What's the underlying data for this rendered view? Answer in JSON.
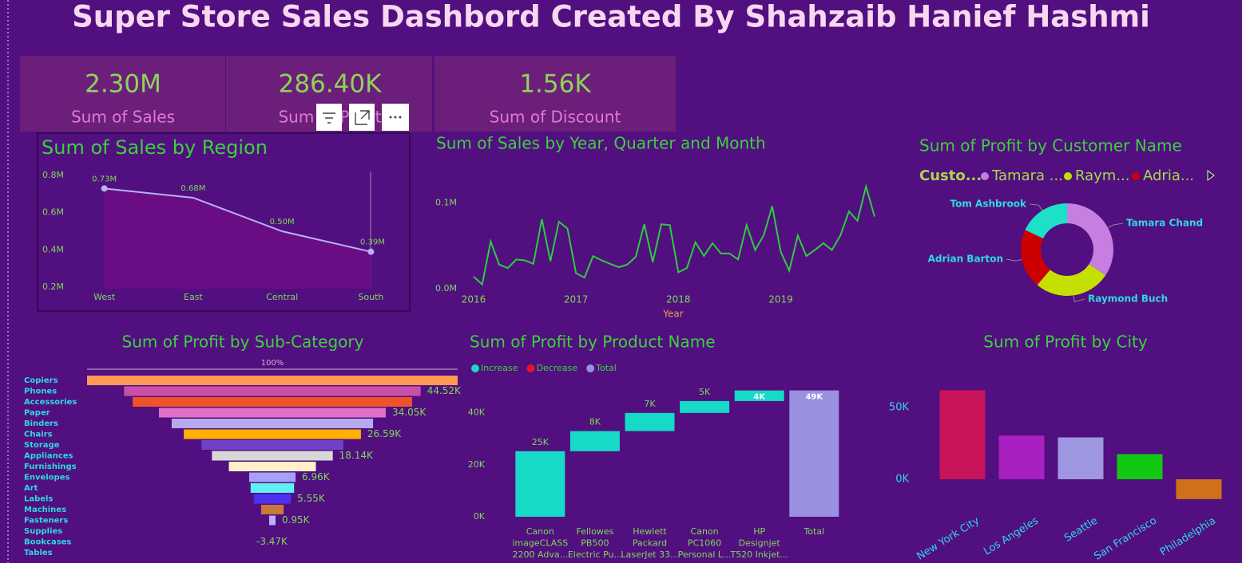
{
  "title": "Super Store Sales Dashbord Created By Shahzaib Hanief Hashmi",
  "cards": [
    {
      "value": "2.30M",
      "label": "Sum of Sales"
    },
    {
      "value": "286.40K",
      "label": "Sum of Profit"
    },
    {
      "value": "1.56K",
      "label": "Sum of Discount"
    }
  ],
  "chart_data": [
    {
      "type": "area",
      "title": "Sum of Sales by Region",
      "categories": [
        "West",
        "East",
        "Central",
        "South"
      ],
      "values": [
        0.73,
        0.68,
        0.5,
        0.39
      ],
      "value_labels": [
        "0.73M",
        "0.68M",
        "0.50M",
        "0.39M"
      ],
      "color": "#b8b0f0",
      "ylim": [
        0.2,
        0.8
      ],
      "yticks": [
        {
          "value": 0.2,
          "label": "0.2M"
        },
        {
          "value": 0.4,
          "label": "0.4M"
        },
        {
          "value": 0.6,
          "label": "0.6M"
        },
        {
          "value": 0.8,
          "label": "0.8M"
        }
      ]
    },
    {
      "type": "line",
      "title": "Sum of Sales by Year, Quarter and Month",
      "xlabel": "Year",
      "categories": [
        "2016",
        null,
        null,
        null,
        null,
        null,
        null,
        null,
        null,
        null,
        null,
        null,
        "2017",
        null,
        null,
        null,
        null,
        null,
        null,
        null,
        null,
        null,
        null,
        null,
        "2018",
        null,
        null,
        null,
        null,
        null,
        null,
        null,
        null,
        null,
        null,
        null,
        "2019",
        null,
        null,
        null,
        null,
        null,
        null,
        null,
        null,
        null,
        null,
        null
      ],
      "values": [
        0.014,
        0.005,
        0.055,
        0.028,
        0.024,
        0.034,
        0.033,
        0.029,
        0.081,
        0.032,
        0.078,
        0.07,
        0.018,
        0.013,
        0.038,
        0.033,
        0.029,
        0.025,
        0.028,
        0.037,
        0.075,
        0.031,
        0.075,
        0.074,
        0.019,
        0.024,
        0.054,
        0.038,
        0.053,
        0.041,
        0.041,
        0.034,
        0.074,
        0.045,
        0.062,
        0.096,
        0.043,
        0.021,
        0.062,
        0.038,
        0.045,
        0.053,
        0.045,
        0.062,
        0.09,
        0.079,
        0.119,
        0.084
      ],
      "color": "#2ecc40",
      "ylim": [
        0,
        0.13
      ],
      "yticks": [
        {
          "value": 0,
          "label": "0.0M"
        },
        {
          "value": 0.1,
          "label": "0.1M"
        }
      ]
    },
    {
      "type": "donut",
      "title": "Sum of Profit by Customer Name",
      "legend_title": "Custo...",
      "legend_labels": [
        "Tamara ...",
        "Raym...",
        "Adria..."
      ],
      "categories": [
        "Tamara Chand",
        "Raymond Buch",
        "Adrian Barton",
        "Tom Ashbrook"
      ],
      "values": [
        8981.32,
        6976.1,
        5444.81,
        4703.79
      ],
      "colors": [
        "#c67ee0",
        "#c5e000",
        "#cc0000",
        "#1de0c8"
      ]
    },
    {
      "type": "funnel",
      "title": "Sum of Profit by Sub-Category",
      "top_label": "100%",
      "categories": [
        "Copiers",
        "Phones",
        "Accessories",
        "Paper",
        "Binders",
        "Chairs",
        "Storage",
        "Appliances",
        "Furnishings",
        "Envelopes",
        "Art",
        "Labels",
        "Machines",
        "Fasteners",
        "Supplies",
        "Bookcases",
        "Tables"
      ],
      "values": [
        55.62,
        44.52,
        41.94,
        34.05,
        30.22,
        26.59,
        21.28,
        18.14,
        13.06,
        6.96,
        6.53,
        5.55,
        3.38,
        0.95,
        -1.19,
        -3.47,
        -17.73
      ],
      "value_labels": [
        null,
        "44.52K",
        null,
        "34.05K",
        null,
        "26.59K",
        null,
        "18.14K",
        null,
        "6.96K",
        null,
        "5.55K",
        null,
        "0.95K",
        null,
        "-3.47K",
        null
      ],
      "colors": [
        "#ff9955",
        "#c94fa8",
        "#f0522a",
        "#e070c8",
        "#b8a8f0",
        "#ffb000",
        "#7040c8",
        "#d8d8d8",
        "#fff0c8",
        "#a8a0f8",
        "#60f0f0",
        "#5030f0",
        "#c87838",
        "#c0b0ff",
        "#e8c0e0",
        "#90d0ff",
        "#ffd0a0"
      ]
    },
    {
      "type": "waterfall",
      "title": "Sum of Profit by Product Name",
      "legend": [
        {
          "name": "Increase",
          "color": "#17d9c8"
        },
        {
          "name": "Decrease",
          "color": "#e8112d"
        },
        {
          "name": "Total",
          "color": "#9a90e0"
        }
      ],
      "categories": [
        [
          "Canon",
          "imageCLASS",
          "2200 Adva..."
        ],
        [
          "Fellowes",
          "PB500",
          "Electric Pu..."
        ],
        [
          "Hewlett",
          "Packard",
          "LaserJet 33..."
        ],
        [
          "Canon",
          "PC1060",
          "Personal L..."
        ],
        [
          "HP",
          "Designjet",
          "T520 Inkjet..."
        ],
        [
          "Total"
        ]
      ],
      "values": [
        25.2,
        7.75,
        6.98,
        4.57,
        4.09,
        48.59
      ],
      "value_labels": [
        "25K",
        "8K",
        "7K",
        "5K",
        "4K",
        "49K"
      ],
      "ylim": [
        0,
        50
      ],
      "yticks": [
        {
          "value": 0,
          "label": "0K"
        },
        {
          "value": 20,
          "label": "20K"
        },
        {
          "value": 40,
          "label": "40K"
        }
      ]
    },
    {
      "type": "bar",
      "title": "Sum of Profit by City",
      "categories": [
        "New York City",
        "Los Angeles",
        "Seattle",
        "San Francisco",
        "Philadelphia"
      ],
      "values": [
        62.04,
        30.44,
        29.16,
        17.51,
        -13.84
      ],
      "colors": [
        "#c8145a",
        "#a820c0",
        "#9e96e0",
        "#12c812",
        "#d0701a"
      ],
      "ylim": [
        -20,
        70
      ],
      "yticks": [
        {
          "value": 0,
          "label": "0K"
        },
        {
          "value": 50,
          "label": "50K"
        }
      ]
    }
  ]
}
